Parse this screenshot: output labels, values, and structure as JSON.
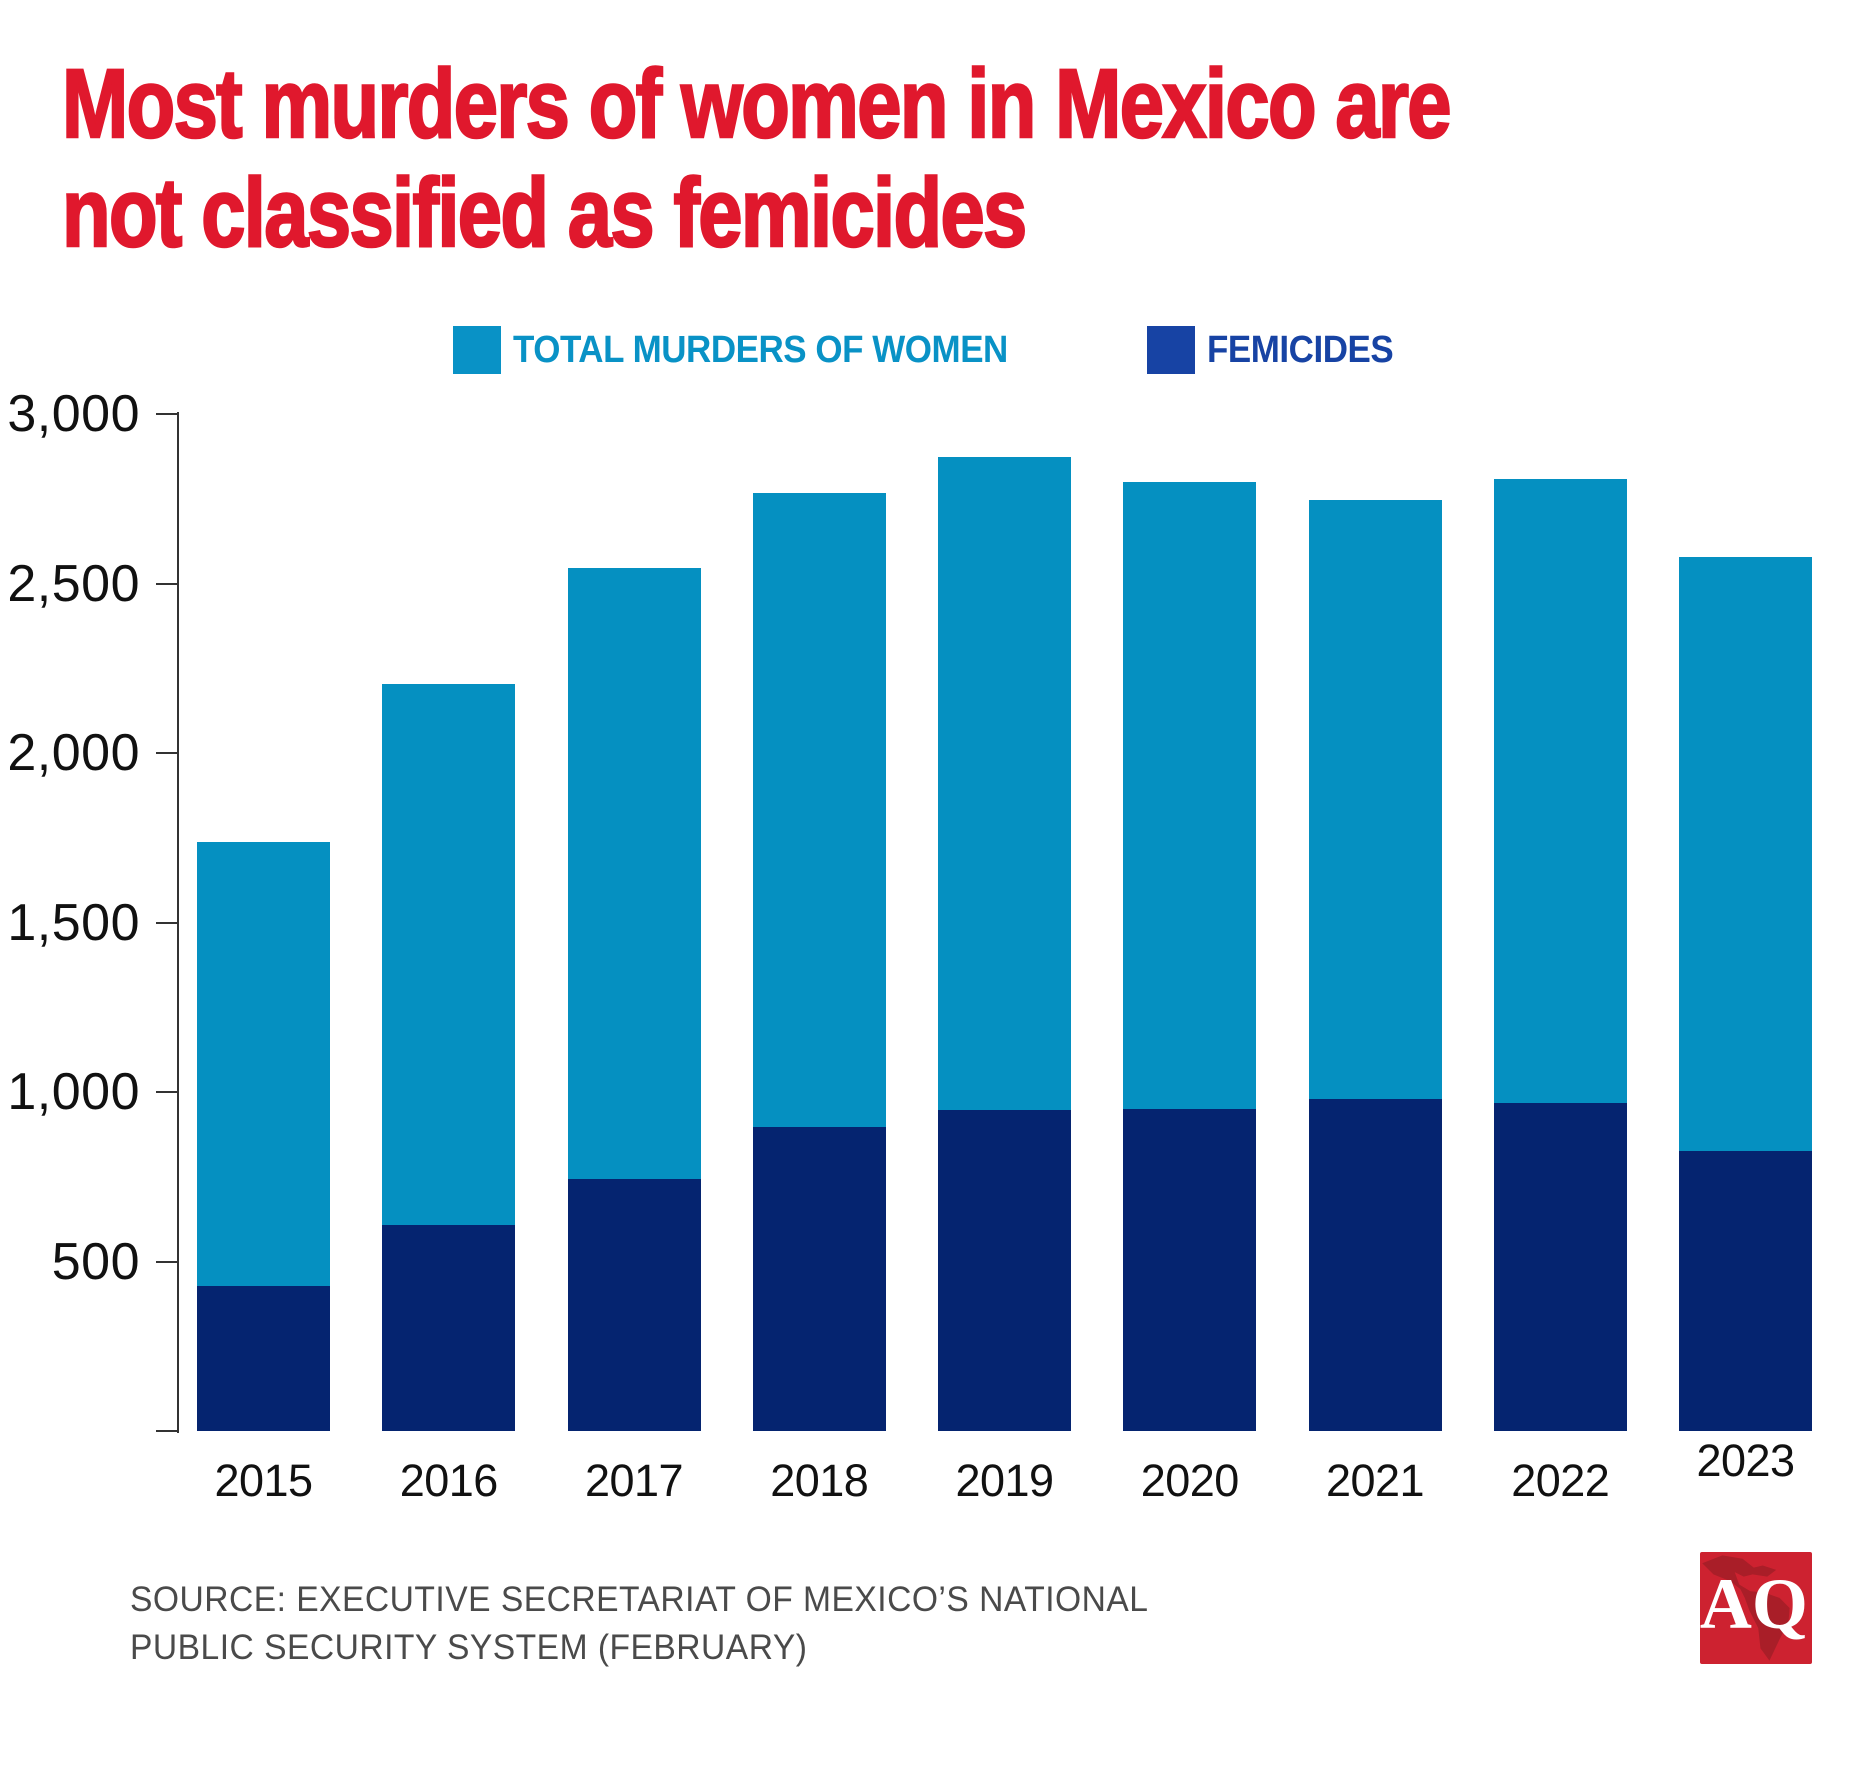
{
  "header": {
    "title_line1": "Most murders of women in Mexico are",
    "title_line2": "not classified as femicides",
    "title_color": "#E0182D"
  },
  "chart_data": {
    "type": "bar",
    "title": "Most murders of women in Mexico are not classified as femicides",
    "categories": [
      "2015",
      "2016",
      "2017",
      "2018",
      "2019",
      "2020",
      "2021",
      "2022",
      "2023"
    ],
    "series": [
      {
        "name": "TOTAL MURDERS OF WOMEN",
        "color": "#0590C1",
        "legend_color": "#0992C6",
        "values": [
          1737,
          2204,
          2547,
          2767,
          2874,
          2798,
          2747,
          2807,
          2578
        ]
      },
      {
        "name": "FEMICIDES",
        "color": "#052470",
        "legend_color": "#1743A4",
        "values": [
          427,
          607,
          742,
          898,
          948,
          949,
          980,
          968,
          827
        ]
      }
    ],
    "xlabel": "",
    "ylabel": "",
    "ylim": [
      0,
      3000
    ],
    "yticks": [
      {
        "value": 3000,
        "label": "3,000"
      },
      {
        "value": 2500,
        "label": "2,500"
      },
      {
        "value": 2000,
        "label": "2,000"
      },
      {
        "value": 1500,
        "label": "1,500"
      },
      {
        "value": 1000,
        "label": "1,000"
      },
      {
        "value": 500,
        "label": "500"
      },
      {
        "value": 0,
        "label": ""
      }
    ],
    "grid": false,
    "legend_position": "top",
    "bar_style": "overlay"
  },
  "source": {
    "line1": "SOURCE: EXECUTIVE SECRETARIAT OF MEXICO’S NATIONAL",
    "line2": "PUBLIC SECURITY SYSTEM (FEBRUARY)"
  },
  "logo": {
    "text": "AQ",
    "bg_color": "#CD2230",
    "map_color": "#A91E28",
    "text_color": "#FFFFFF"
  },
  "colors": {
    "axis": "#333333",
    "tick_label": "#111111",
    "year_label": "#111111",
    "source_gray": "#4A4A4A",
    "background": "#FFFFFF"
  }
}
